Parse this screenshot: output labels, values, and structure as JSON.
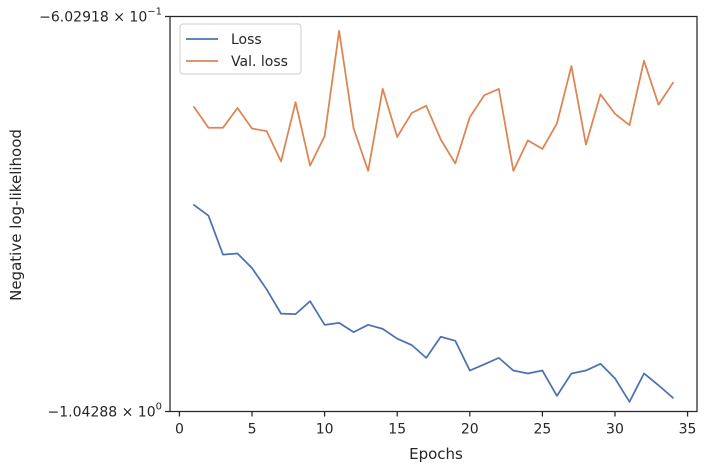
{
  "chart_data": {
    "type": "line",
    "xlabel": "Epochs",
    "ylabel": "Negative log-likelihood",
    "xlim": [
      -0.65,
      35.65
    ],
    "ylim": [
      -1.04288,
      -0.602918
    ],
    "y_scale": "symlog-style (labeled endpoints only)",
    "grid": false,
    "legend_position": "top-left",
    "x_ticks": [
      0,
      5,
      10,
      15,
      20,
      25,
      30,
      35
    ],
    "x_tick_labels": [
      "0",
      "5",
      "10",
      "15",
      "20",
      "25",
      "30",
      "35"
    ],
    "y_tick_labels": [
      {
        "value": -0.602918,
        "mantissa": "−6.02918",
        "base": "10",
        "exp": "−1"
      },
      {
        "value": -1.04288,
        "mantissa": "−1.04288",
        "base": "10",
        "exp": "0"
      }
    ],
    "x": [
      1,
      2,
      3,
      4,
      5,
      6,
      7,
      8,
      9,
      10,
      11,
      12,
      13,
      14,
      15,
      16,
      17,
      18,
      19,
      20,
      21,
      22,
      23,
      24,
      25,
      26,
      27,
      28,
      29,
      30,
      31,
      32,
      33,
      34
    ],
    "series": [
      {
        "name": "Loss",
        "color": "#4c72b0",
        "values": [
          -0.81284,
          -0.82478,
          -0.86809,
          -0.86689,
          -0.88315,
          -0.90665,
          -0.93387,
          -0.9344,
          -0.92004,
          -0.94634,
          -0.94415,
          -0.95444,
          -0.94634,
          -0.95085,
          -0.96179,
          -0.96883,
          -0.98316,
          -0.95961,
          -0.96413,
          -0.99726,
          -0.99031,
          -0.98316,
          -0.99726,
          -1.00052,
          -0.99726,
          -1.02547,
          -1.00052,
          -0.99726,
          -0.98972,
          -1.00596,
          -1.03206,
          -1.00052,
          -1.01366,
          -1.02768
        ]
      },
      {
        "name": "Val. loss",
        "color": "#dd8452",
        "values": [
          -0.70359,
          -0.72678,
          -0.72678,
          -0.70479,
          -0.72771,
          -0.73051,
          -0.76426,
          -0.69835,
          -0.76898,
          -0.73612,
          -0.61898,
          -0.72771,
          -0.77487,
          -0.68356,
          -0.73708,
          -0.71042,
          -0.70239,
          -0.73991,
          -0.76662,
          -0.71506,
          -0.69064,
          -0.68356,
          -0.77487,
          -0.74089,
          -0.75042,
          -0.7221,
          -0.65813,
          -0.74566,
          -0.68959,
          -0.71127,
          -0.72396,
          -0.65215,
          -0.70119,
          -0.67662
        ]
      }
    ]
  }
}
